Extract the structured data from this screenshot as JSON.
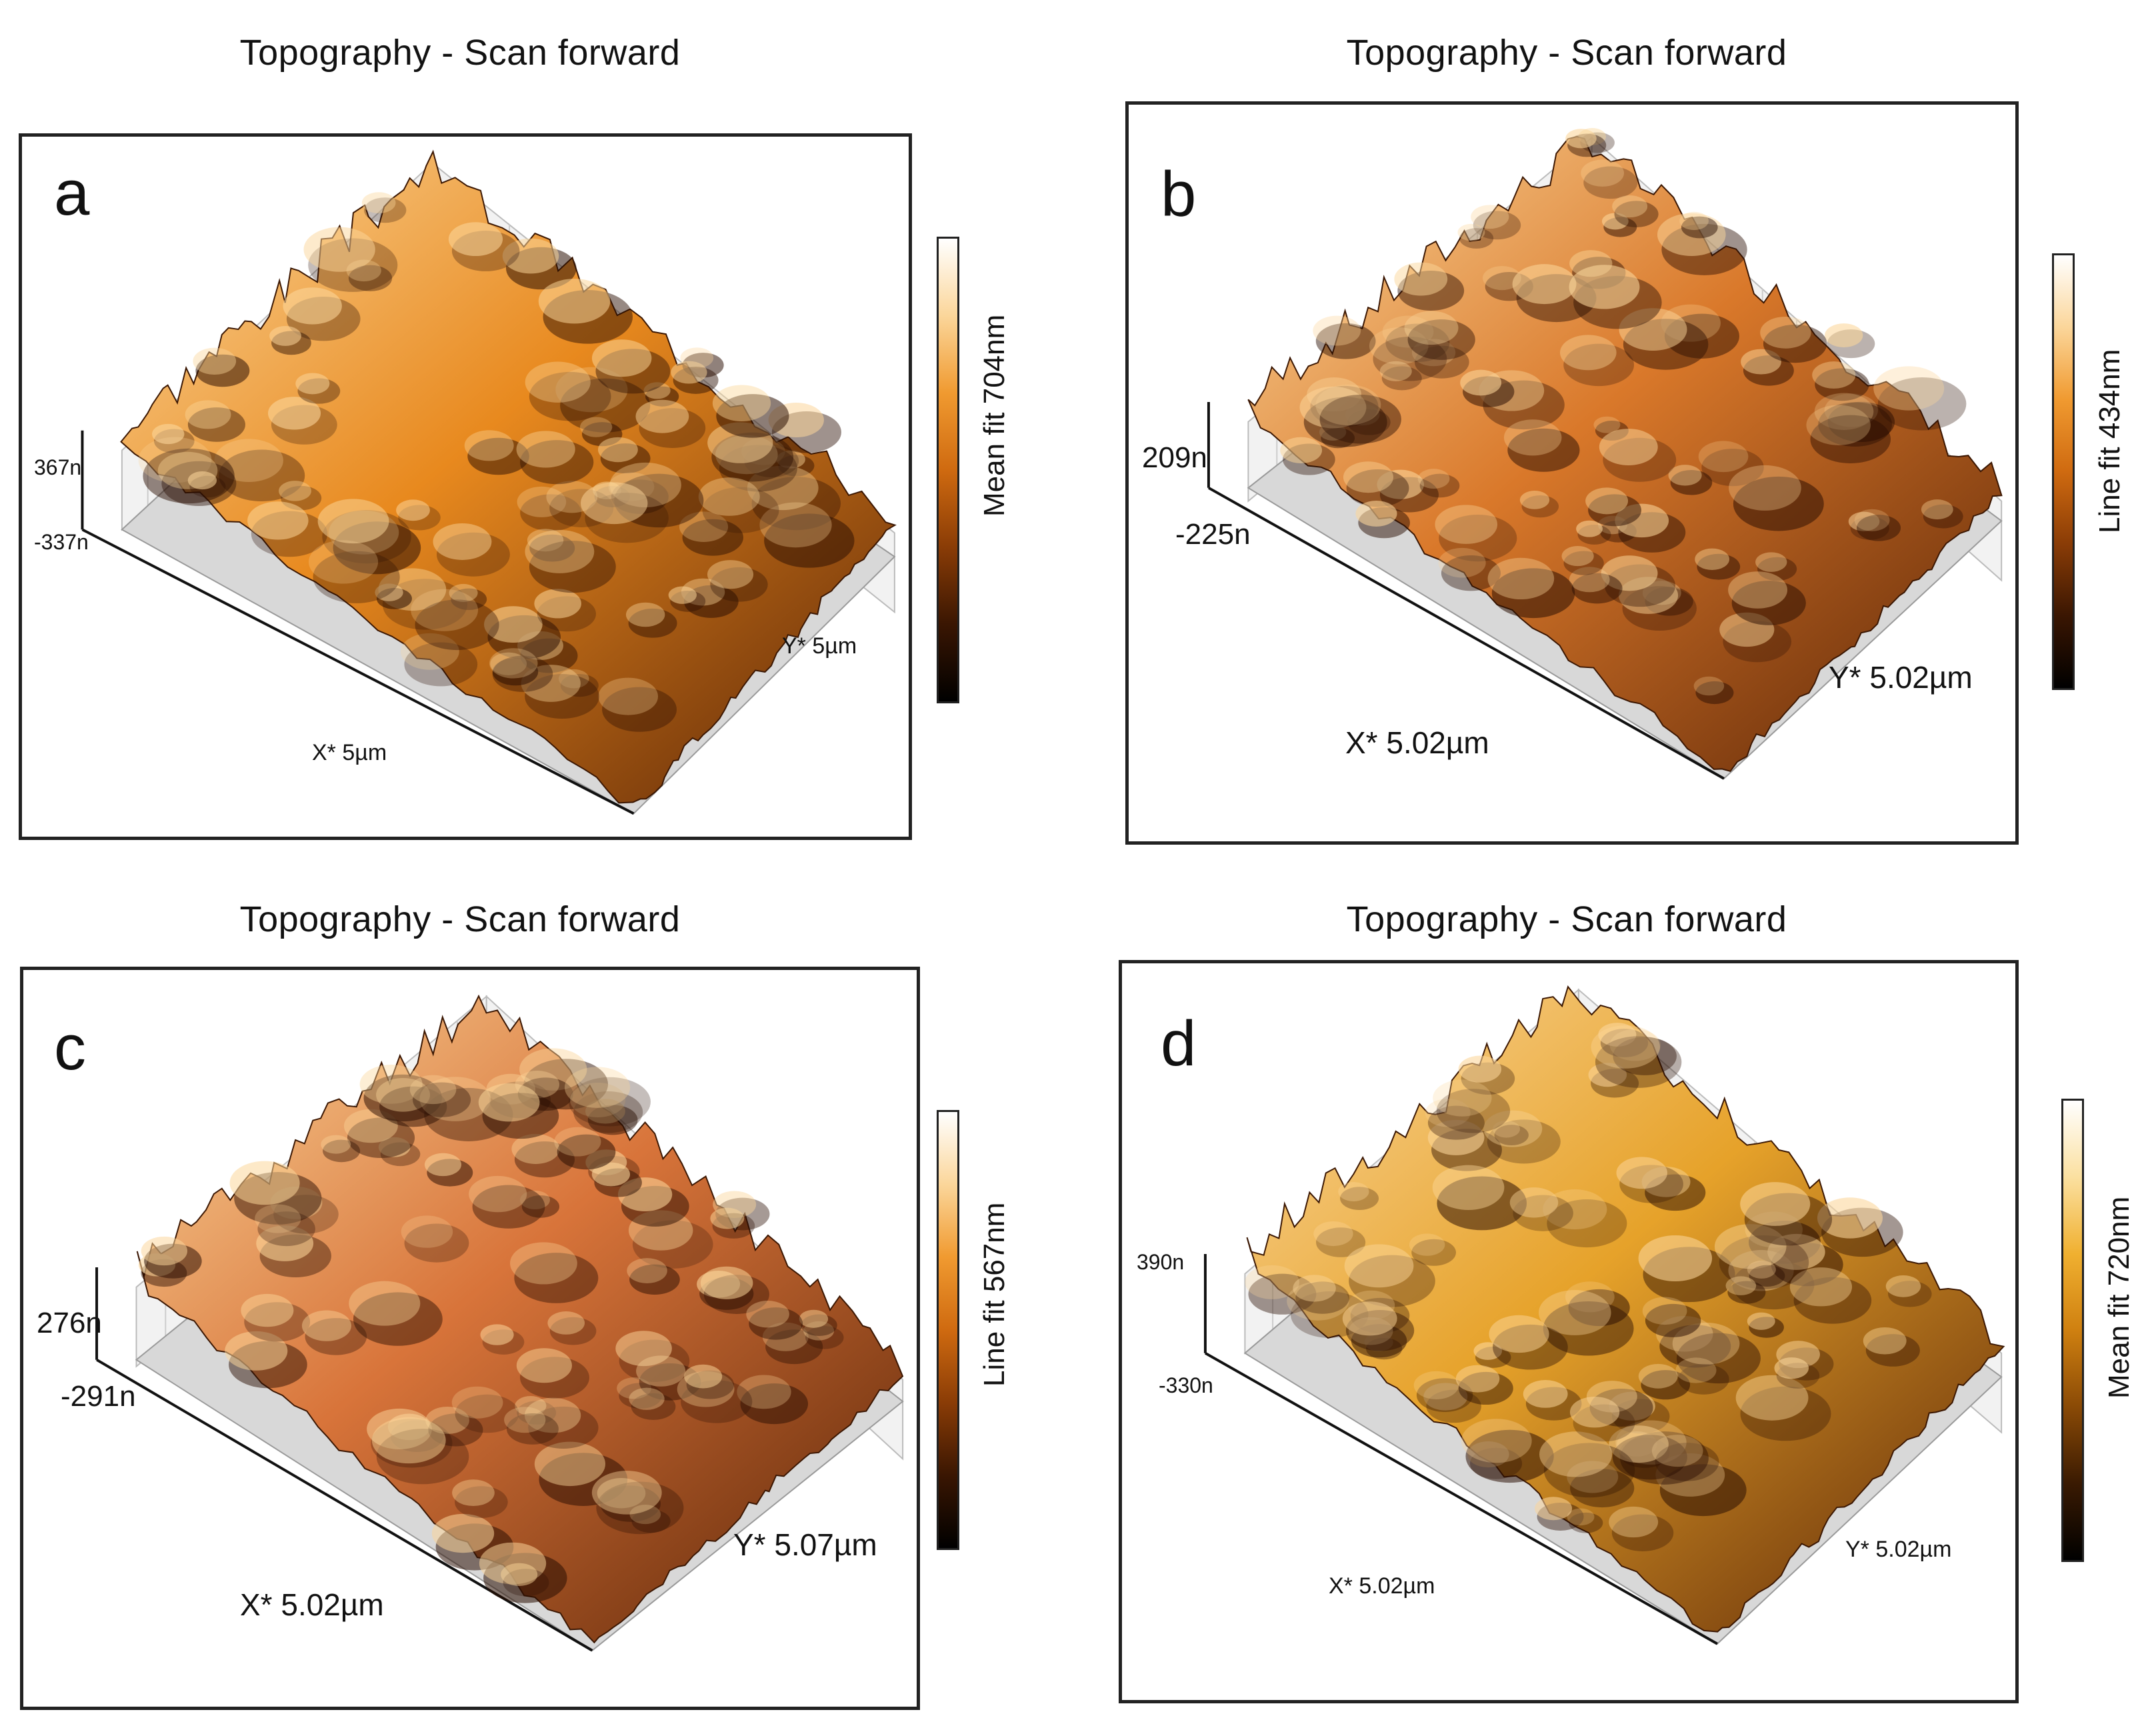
{
  "panels": [
    {
      "id": "a",
      "title": "Topography - Scan forward",
      "letter": "a",
      "z_max": "367n",
      "z_min": "-337n",
      "x_label": "X* 5µm",
      "y_label": "Y* 5µm",
      "scale_label": "Mean fit 704nm",
      "colormap": [
        "#000000",
        "#3a1602",
        "#8a3c06",
        "#cf6a10",
        "#f09a30",
        "#fbd69a",
        "#ffffff"
      ],
      "surface_color": "#e8891e"
    },
    {
      "id": "b",
      "title": "Topography - Scan forward",
      "letter": "b",
      "z_max": "209n",
      "z_min": "-225n",
      "x_label": "X* 5.02µm",
      "y_label": "Y* 5.02µm",
      "scale_label": "Line fit 434nm",
      "colormap": [
        "#000000",
        "#3a1602",
        "#8a3c06",
        "#cf6a10",
        "#f09a30",
        "#fbd69a",
        "#ffffff"
      ],
      "surface_color": "#d9782a"
    },
    {
      "id": "c",
      "title": "Topography - Scan forward",
      "letter": "c",
      "z_max": "276n",
      "z_min": "-291n",
      "x_label": "X* 5.02µm",
      "y_label": "Y* 5.07µm",
      "scale_label": "Line fit 567nm",
      "colormap": [
        "#000000",
        "#3a1602",
        "#8a3c06",
        "#cf6a10",
        "#f09a30",
        "#fbd69a",
        "#ffffff"
      ],
      "surface_color": "#d8743a"
    },
    {
      "id": "d",
      "title": "Topography - Scan forward",
      "letter": "d",
      "z_max": "390n",
      "z_min": "-330n",
      "x_label": "X* 5.02µm",
      "y_label": "Y* 5.02µm",
      "scale_label": "Mean fit 720nm",
      "colormap": [
        "#000000",
        "#3a1a02",
        "#8a4a06",
        "#cf8010",
        "#f0b030",
        "#fbe0a0",
        "#ffffff"
      ],
      "surface_color": "#e6a22a"
    }
  ]
}
